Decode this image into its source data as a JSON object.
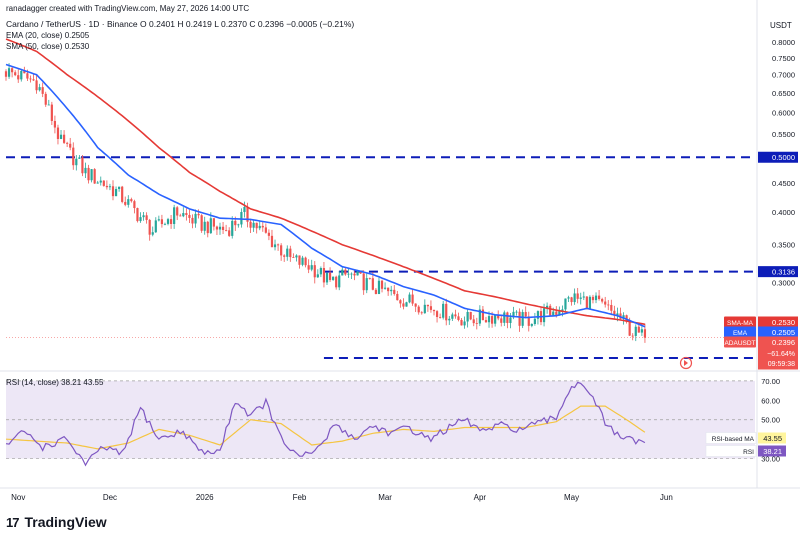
{
  "header": {
    "creator_line": "ranadagger created with TradingView.com, May 27, 2026 14:00 UTC",
    "symbol_line": "Cardano / TetherUS · 1D · Binance  O 0.2401  H 0.2419  L 0.2370  C 0.2396  −0.0005 (−0.21%)",
    "ema_line": "EMA (20, close)  0.2505",
    "sma_line": "SMA (50, close)  0.2530"
  },
  "branding": {
    "logo_mark": "17",
    "logo_text": "TradingView"
  },
  "colors": {
    "up": "#26a69a",
    "down": "#ef5350",
    "ema": "#2962ff",
    "sma": "#e53935",
    "level": "#0d1db8",
    "rsi": "#7e57c2",
    "rsi_ma": "#f5c542",
    "band": "#ede7f6"
  },
  "chart_data": [
    {
      "type": "candlestick",
      "title": "Cardano / TetherUS · 1D · Binance",
      "currency": "USDT",
      "y_ticks": [
        "0.8000",
        "0.7500",
        "0.7000",
        "0.6500",
        "0.6000",
        "0.5500",
        "0.5000",
        "0.4500",
        "0.4000",
        "0.3500",
        "0.3000"
      ],
      "ylim": [
        0.2205,
        0.8
      ],
      "x_ticks": [
        "Nov",
        "Dec",
        "2026",
        "Feb",
        "Mar",
        "Apr",
        "May",
        "Jun"
      ],
      "x_tick_days": [
        4,
        34,
        65,
        96,
        124,
        155,
        185,
        216
      ],
      "xlim": [
        0,
        245
      ],
      "last_day": 209,
      "anchors": [
        [
          0,
          0.71
        ],
        [
          10,
          0.68
        ],
        [
          18,
          0.53
        ],
        [
          26,
          0.47
        ],
        [
          36,
          0.435
        ],
        [
          48,
          0.37
        ],
        [
          56,
          0.4
        ],
        [
          64,
          0.38
        ],
        [
          72,
          0.372
        ],
        [
          78,
          0.395
        ],
        [
          86,
          0.36
        ],
        [
          93,
          0.33
        ],
        [
          100,
          0.32
        ],
        [
          106,
          0.3
        ],
        [
          112,
          0.31
        ],
        [
          120,
          0.295
        ],
        [
          130,
          0.28
        ],
        [
          140,
          0.27
        ],
        [
          150,
          0.258
        ],
        [
          160,
          0.262
        ],
        [
          170,
          0.257
        ],
        [
          180,
          0.268
        ],
        [
          185,
          0.282
        ],
        [
          193,
          0.276
        ],
        [
          200,
          0.262
        ],
        [
          205,
          0.245
        ],
        [
          209,
          0.2396
        ]
      ],
      "ema_anchors": [
        [
          0,
          0.73
        ],
        [
          10,
          0.7
        ],
        [
          20,
          0.61
        ],
        [
          30,
          0.52
        ],
        [
          40,
          0.465
        ],
        [
          50,
          0.43
        ],
        [
          60,
          0.405
        ],
        [
          70,
          0.39
        ],
        [
          80,
          0.388
        ],
        [
          90,
          0.38
        ],
        [
          100,
          0.345
        ],
        [
          110,
          0.32
        ],
        [
          120,
          0.31
        ],
        [
          130,
          0.295
        ],
        [
          140,
          0.285
        ],
        [
          150,
          0.27
        ],
        [
          160,
          0.263
        ],
        [
          170,
          0.26
        ],
        [
          180,
          0.262
        ],
        [
          190,
          0.27
        ],
        [
          200,
          0.262
        ],
        [
          209,
          0.2505
        ]
      ],
      "sma_anchors": [
        [
          0,
          0.81
        ],
        [
          10,
          0.77
        ],
        [
          20,
          0.7
        ],
        [
          30,
          0.64
        ],
        [
          40,
          0.58
        ],
        [
          50,
          0.52
        ],
        [
          60,
          0.47
        ],
        [
          70,
          0.435
        ],
        [
          80,
          0.405
        ],
        [
          90,
          0.39
        ],
        [
          100,
          0.37
        ],
        [
          110,
          0.35
        ],
        [
          120,
          0.335
        ],
        [
          130,
          0.32
        ],
        [
          140,
          0.305
        ],
        [
          150,
          0.29
        ],
        [
          160,
          0.283
        ],
        [
          170,
          0.275
        ],
        [
          180,
          0.268
        ],
        [
          190,
          0.262
        ],
        [
          200,
          0.258
        ],
        [
          209,
          0.253
        ]
      ],
      "horizontal_levels": [
        {
          "value": 0.5,
          "label": "0.5000",
          "from_day": 0
        },
        {
          "value": 0.3136,
          "label": "0.3136",
          "from_day": 104
        },
        {
          "value": 0.2205,
          "label": "0.2205",
          "from_day": 104
        }
      ],
      "price_labels": [
        {
          "series": "SMA-MA",
          "label": "SMA-MA",
          "value": 0.253,
          "text": "0.2530"
        },
        {
          "series": "EMA",
          "label": "EMA",
          "value": 0.2505,
          "text": "0.2505"
        },
        {
          "series": "ADAUSDT",
          "label": "ADAUSDT",
          "value": 0.2396,
          "text": "0.2396",
          "change": "−61.64%",
          "countdown": "09:59:38"
        }
      ]
    },
    {
      "type": "line",
      "title": "RSI (14, close)",
      "legend_text": "RSI (14, close)  38.21  43.55",
      "y_ticks": [
        "70.00",
        "60.00",
        "50.00",
        "40.00",
        "30.00"
      ],
      "ylim": [
        20,
        72
      ],
      "overbought": 70,
      "oversold": 30,
      "anchors": [
        [
          0,
          37
        ],
        [
          6,
          44
        ],
        [
          12,
          36
        ],
        [
          20,
          40
        ],
        [
          26,
          27
        ],
        [
          32,
          36
        ],
        [
          38,
          32
        ],
        [
          44,
          56
        ],
        [
          50,
          40
        ],
        [
          58,
          44
        ],
        [
          64,
          33
        ],
        [
          70,
          34
        ],
        [
          75,
          60
        ],
        [
          80,
          52
        ],
        [
          85,
          59
        ],
        [
          90,
          40
        ],
        [
          96,
          30
        ],
        [
          102,
          35
        ],
        [
          108,
          48
        ],
        [
          114,
          40
        ],
        [
          120,
          47
        ],
        [
          126,
          43
        ],
        [
          132,
          46
        ],
        [
          138,
          40
        ],
        [
          144,
          45
        ],
        [
          150,
          50
        ],
        [
          156,
          44
        ],
        [
          162,
          47
        ],
        [
          168,
          45
        ],
        [
          174,
          48
        ],
        [
          180,
          51
        ],
        [
          184,
          65
        ],
        [
          188,
          70
        ],
        [
          192,
          62
        ],
        [
          196,
          48
        ],
        [
          200,
          42
        ],
        [
          205,
          39
        ],
        [
          209,
          38.21
        ]
      ],
      "ma_anchors": [
        [
          0,
          40
        ],
        [
          10,
          39
        ],
        [
          20,
          38
        ],
        [
          30,
          35
        ],
        [
          40,
          38
        ],
        [
          50,
          45
        ],
        [
          60,
          42
        ],
        [
          70,
          37
        ],
        [
          80,
          50
        ],
        [
          90,
          48
        ],
        [
          100,
          37
        ],
        [
          110,
          39
        ],
        [
          120,
          43
        ],
        [
          130,
          45
        ],
        [
          140,
          44
        ],
        [
          150,
          46
        ],
        [
          160,
          46
        ],
        [
          170,
          46
        ],
        [
          180,
          49
        ],
        [
          188,
          57
        ],
        [
          196,
          57
        ],
        [
          203,
          50
        ],
        [
          209,
          43.55
        ]
      ],
      "series": [
        {
          "name": "RSI",
          "label": "RSI",
          "value": 38.21,
          "text": "38.21"
        },
        {
          "name": "RSI-based MA",
          "label": "RSI-based MA",
          "value": 43.55,
          "text": "43.55"
        }
      ]
    }
  ]
}
